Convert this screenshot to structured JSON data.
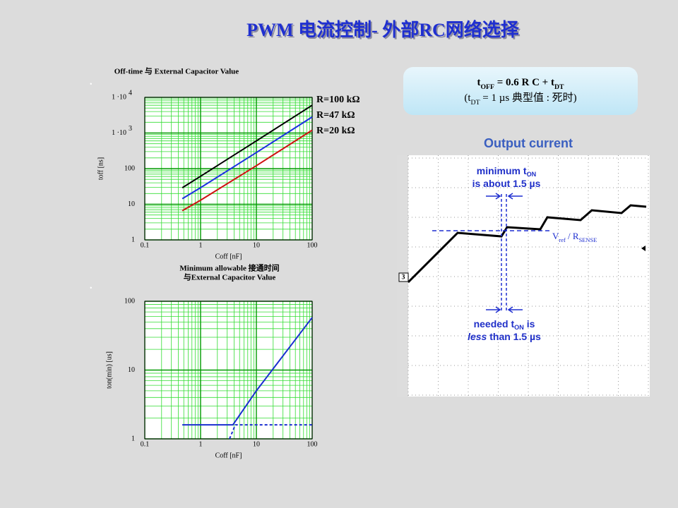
{
  "title": "PWM 电流控制- 外部RC网络选择",
  "formula": {
    "line1": [
      {
        "text": "t"
      },
      {
        "sub": "OFF"
      },
      {
        "text": " = 0.6 R C + t"
      },
      {
        "sub": "DT"
      }
    ],
    "line2": [
      {
        "text": "(t"
      },
      {
        "sub": "DT"
      },
      {
        "text": " = 1 µs 典型值 : 死时)"
      }
    ]
  },
  "scope": {
    "title": "Output current",
    "note1": [
      [
        {
          "text": "minimum t"
        },
        {
          "sub": "ON"
        }
      ],
      [
        {
          "text": "is about 1.5 µs"
        }
      ]
    ],
    "note2": [
      [
        {
          "text": "needed t"
        },
        {
          "sub": "ON"
        },
        {
          "text": " is"
        }
      ],
      [
        {
          "text": "less",
          "italic": true
        },
        {
          "text": " than 1.5 µs"
        }
      ]
    ],
    "level": [
      {
        "text": "V"
      },
      {
        "sub": "ref"
      },
      {
        "text": " / R"
      },
      {
        "sub": "SENSE"
      }
    ],
    "channel": "3"
  },
  "chart_data": [
    {
      "type": "line",
      "title": "Off-time 与 External Capacitor Value",
      "x_label": "Coff [nF]",
      "y_label": "toff [ns]",
      "log_x": true,
      "log_y": true,
      "grid": true,
      "legend": "right",
      "xlim": [
        0.1,
        100
      ],
      "xticks": [
        0.1,
        1,
        10,
        100
      ],
      "ylim": [
        1,
        10000
      ],
      "yticks": [
        1,
        10,
        100,
        {
          "value": 1000,
          "label": "1 ·10",
          "exponent": "3"
        },
        {
          "value": 10000,
          "label": "1 ·10",
          "exponent": "4"
        }
      ],
      "series": [
        {
          "name": "R=100 kΩ",
          "color": "#000000",
          "x": [
            0.47,
            1,
            10,
            100
          ],
          "values": [
            29,
            61,
            601,
            6001
          ]
        },
        {
          "name": "R=47 kΩ",
          "color": "#1a2fe0",
          "x": [
            0.47,
            1,
            10,
            100
          ],
          "values": [
            14.3,
            29.2,
            283,
            2821
          ]
        },
        {
          "name": "R=20 kΩ",
          "color": "#d01010",
          "x": [
            0.47,
            1,
            10,
            100
          ],
          "values": [
            6.6,
            13,
            121,
            1201
          ]
        }
      ]
    },
    {
      "type": "line",
      "title": [
        "Minimum allowable 接通时间",
        "与External Capacitor Value"
      ],
      "x_label": "Coff [nF]",
      "y_label": "ton(min) [us]",
      "log_x": true,
      "log_y": true,
      "grid": true,
      "xlim": [
        0.1,
        100
      ],
      "xticks": [
        0.1,
        1,
        10,
        100
      ],
      "ylim": [
        1,
        100
      ],
      "yticks": [
        1,
        10,
        100
      ],
      "series": [
        {
          "color": "#1a2fd0",
          "dash": false,
          "x": [
            0.47,
            3.8,
            10,
            100
          ],
          "values": [
            1.6,
            1.6,
            5,
            58
          ]
        },
        {
          "color": "#1a2fd0",
          "dash": true,
          "x": [
            3.3,
            4.2,
            100
          ],
          "values": [
            1,
            1.6,
            1.6
          ]
        }
      ]
    }
  ]
}
